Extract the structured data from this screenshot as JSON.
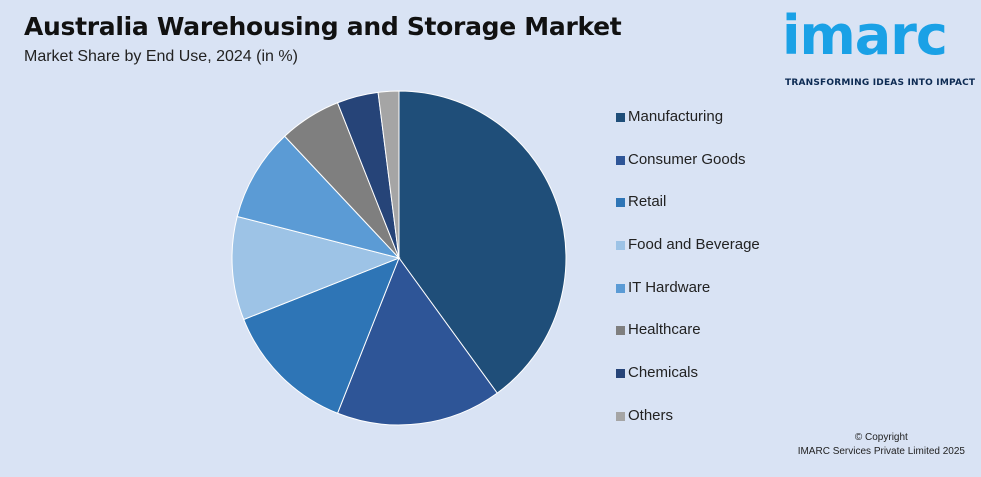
{
  "header": {
    "title": "Australia Warehousing and Storage Market",
    "subtitle": "Market Share by End Use, 2024 (in %)"
  },
  "logo": {
    "wordmark": "imarc",
    "tagline": "TRANSFORMING IDEAS INTO IMPACT",
    "color": "#1aa1e6"
  },
  "chart_data": {
    "type": "pie",
    "title": "Australia Warehousing and Storage Market",
    "subtitle": "Market Share by End Use, 2024 (in %)",
    "categories": [
      "Manufacturing",
      "Consumer Goods",
      "Retail",
      "Food and Beverage",
      "IT Hardware",
      "Healthcare",
      "Chemicals",
      "Others"
    ],
    "values": [
      40,
      16,
      13,
      10,
      9,
      6,
      4,
      2
    ],
    "colors": [
      "#1f4e79",
      "#2e5597",
      "#2e75b6",
      "#9dc3e6",
      "#5b9bd5",
      "#7f7f7f",
      "#264478",
      "#a5a5a5"
    ],
    "legend_position": "right"
  },
  "footer": {
    "copyright_line1": "© Copyright",
    "copyright_line2": "IMARC Services Private Limited 2025"
  }
}
